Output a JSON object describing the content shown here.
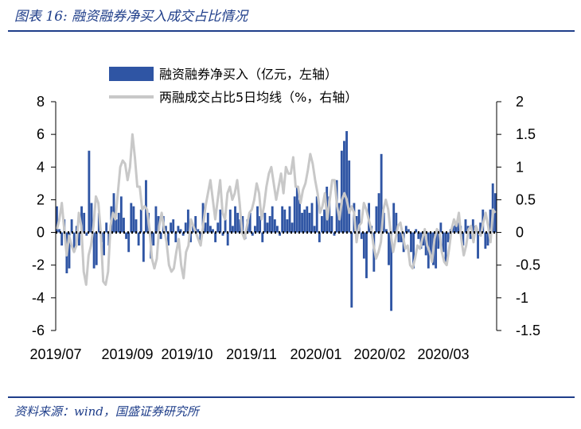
{
  "header": {
    "title": "图表 16: 融资融券净买入成交占比情况"
  },
  "footer": {
    "source": "资料来源：wind，国盛证券研究所"
  },
  "colors": {
    "bar": "#2f55a4",
    "line": "#c8c8c8",
    "title": "#1f3e8a",
    "zero": "#000000"
  },
  "chart_data": {
    "type": "bar+line",
    "legend_position": "top",
    "series": [
      {
        "name": "融资融券净买入（亿元，左轴）",
        "type": "bar",
        "axis": "left",
        "values": [
          1.6,
          0.2,
          -0.8,
          0.8,
          -2.5,
          -2.2,
          0.8,
          -1.2,
          0.4,
          -0.8,
          1.6,
          1.2,
          -0.2,
          5.0,
          1.8,
          -2.2,
          -2.0,
          1.2,
          -0.6,
          -1.4,
          0.6,
          -0.8,
          1.6,
          2.4,
          0.8,
          1.2,
          2.2,
          0.9,
          -0.4,
          -1.2,
          1.8,
          1.6,
          0.8,
          -0.8,
          1.4,
          -1.8,
          3.2,
          1.2,
          -1.6,
          -0.8,
          1.6,
          1.0,
          -0.4,
          1.0,
          0.4,
          -0.8,
          0.6,
          0.8,
          -0.6,
          0.4,
          0.2,
          -0.2,
          0.6,
          1.4,
          -0.6,
          0.4,
          1.0,
          0.2,
          -0.6,
          1.8,
          0.6,
          1.2,
          0.4,
          0.2,
          -0.6,
          0.6,
          1.4,
          -0.2,
          0.8,
          -0.8,
          1.4,
          0.4,
          1.6,
          1.2,
          0.8,
          1.0,
          -0.4,
          0.8,
          1.2,
          -0.2,
          0.4,
          1.6,
          1.0,
          -0.6,
          1.2,
          0.6,
          1.0,
          1.6,
          0.8,
          0.4,
          -0.2,
          1.6,
          1.4,
          0.8,
          1.6,
          0.6,
          2.2,
          2.8,
          2.0,
          1.2,
          1.4,
          1.6,
          1.2,
          1.8,
          0.4,
          2.2,
          -0.6,
          1.0,
          1.4,
          2.8,
          2.2,
          1.0,
          -0.2,
          3.2,
          1.8,
          5.0,
          5.6,
          6.2,
          4.4,
          -4.6,
          1.8,
          1.0,
          1.4,
          -0.4,
          -1.6,
          -2.8,
          1.8,
          0.4,
          -2.4,
          1.6,
          2.4,
          4.8,
          1.2,
          0.2,
          -2.0,
          -4.8,
          1.8,
          1.2,
          -0.6,
          -0.6,
          -1.2,
          0.4,
          0.2,
          -1.2,
          -2.2,
          0.2,
          -0.4,
          -1.0,
          -0.8,
          -1.4,
          -2.2,
          -1.4,
          -2.0,
          -2.2,
          -1.0,
          0.6,
          -1.2,
          -1.8,
          -0.6,
          0.2,
          0.4,
          0.6,
          0.6,
          0.4,
          -0.8,
          0.8,
          0.4,
          -0.4,
          0.8,
          0.4,
          -1.6,
          0.6,
          1.4,
          -1.0,
          -0.8,
          1.4,
          3.0,
          2.4
        ]
      },
      {
        "name": "两融成交占比5日均线（%，右轴）",
        "type": "line",
        "axis": "right",
        "values": [
          0.05,
          0.2,
          0.45,
          0.05,
          -0.35,
          -0.05,
          -0.2,
          -0.3,
          -0.2,
          0.3,
          0.1,
          -0.6,
          -0.8,
          -0.35,
          -0.2,
          0.1,
          0.55,
          0.45,
          0.0,
          -0.75,
          -0.8,
          -0.6,
          0.1,
          0.3,
          0.2,
          0.6,
          1.0,
          1.1,
          1.05,
          0.8,
          1.0,
          1.5,
          1.15,
          0.7,
          0.7,
          0.35,
          0.4,
          0.35,
          0.05,
          -0.4,
          -0.55,
          -0.4,
          0.1,
          0.3,
          0.05,
          -0.15,
          -0.5,
          -0.6,
          -0.55,
          -0.3,
          -0.1,
          -0.5,
          -0.7,
          -0.3,
          -0.2,
          0.2,
          0.1,
          0.0,
          -0.1,
          -0.2,
          0.1,
          0.4,
          0.6,
          0.8,
          0.5,
          0.2,
          0.5,
          0.8,
          0.3,
          0.2,
          0.6,
          0.7,
          0.5,
          0.6,
          0.8,
          0.45,
          0.0,
          -0.1,
          0.1,
          0.3,
          0.35,
          0.5,
          0.75,
          0.6,
          0.2,
          0.4,
          0.7,
          0.9,
          1.0,
          0.75,
          0.5,
          0.7,
          0.9,
          0.6,
          1.0,
          0.9,
          0.9,
          1.15,
          0.7,
          0.7,
          0.45,
          0.65,
          0.75,
          0.95,
          1.2,
          1.05,
          0.8,
          0.6,
          0.3,
          0.4,
          0.6,
          0.2,
          0.5,
          0.8,
          0.8,
          0.4,
          0.2,
          0.5,
          0.6,
          0.5,
          0.3,
          0.4,
          0.3,
          -0.15,
          0.1,
          0.15,
          0.45,
          0.35,
          0.2,
          0.05,
          -0.2,
          -0.4,
          -0.3,
          -0.15,
          0.35,
          0.5,
          0.35,
          0.0,
          -0.3,
          -0.1,
          0.1,
          0.15,
          -0.05,
          -0.25,
          -0.2,
          -0.5,
          -0.55,
          -0.4,
          -0.2,
          -0.25,
          -0.1,
          0.05,
          -0.2,
          -0.3,
          -0.45,
          -0.1,
          0.05,
          0.0,
          -0.3,
          -0.45,
          -0.5,
          -0.25,
          0.05,
          0.2,
          0.1,
          0.3,
          -0.1,
          -0.35,
          -0.2,
          0.05,
          0.1,
          -0.15,
          0.1,
          0.0,
          -0.05,
          0.15,
          0.3,
          0.1,
          -0.15,
          0.35,
          0.3
        ]
      }
    ],
    "x_tick_labels": [
      "2019/07",
      "2019/09",
      "2019/10",
      "2019/11",
      "2020/01",
      "2020/02",
      "2020/03"
    ],
    "y_left": {
      "min": -6,
      "max": 8,
      "ticks": [
        8,
        6,
        4,
        2,
        0,
        -2,
        -4,
        -6
      ]
    },
    "y_right": {
      "min": -1.5,
      "max": 2,
      "ticks": [
        "2",
        "1.5",
        "1",
        "0.5",
        "0",
        "-0.5",
        "-1",
        "-1.5"
      ]
    }
  }
}
